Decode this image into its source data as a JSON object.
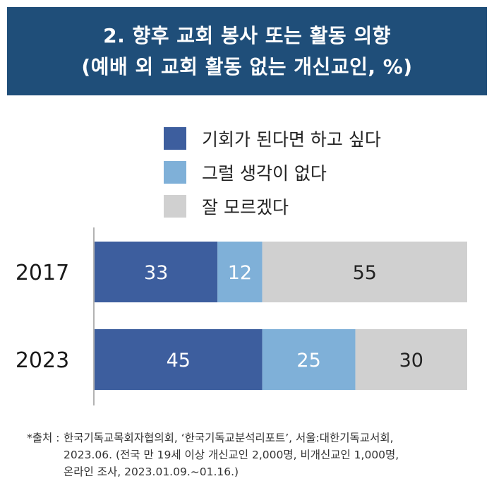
{
  "title": {
    "line1": "2. 향후 교회 봉사 또는 활동 의향",
    "line2": "(예배 외 교회 활동 없는 개신교인, %)"
  },
  "legend": [
    {
      "label": "기회가 된다면 하고 싶다",
      "color": "#3d5e9e"
    },
    {
      "label": "그럴 생각이 없다",
      "color": "#7fb0d8"
    },
    {
      "label": "잘 모르겠다",
      "color": "#d0d0d0"
    }
  ],
  "chart_data": {
    "type": "bar",
    "orientation": "horizontal",
    "stacked": true,
    "categories": [
      "2017",
      "2023"
    ],
    "series": [
      {
        "name": "기회가 된다면 하고 싶다",
        "values": [
          33,
          45
        ],
        "color": "#3d5e9e",
        "label_color": "#ffffff"
      },
      {
        "name": "그럴 생각이 없다",
        "values": [
          12,
          25
        ],
        "color": "#7fb0d8",
        "label_color": "#ffffff"
      },
      {
        "name": "잘 모르겠다",
        "values": [
          55,
          30
        ],
        "color": "#d0d0d0",
        "label_color": "#222222"
      }
    ],
    "xlim": [
      0,
      100
    ],
    "grid": false,
    "legend_position": "top"
  },
  "source": {
    "label": "*출처 :",
    "line1": "한국기독교목회자협의회, ‘한국기독교분석리포트’, 서울:대한기독교서회,",
    "line2": "2023.06. (전국 만 19세 이상 개신교인 2,000명, 비개신교인 1,000명,",
    "line3": "온라인 조사, 2023.01.09.~01.16.)"
  }
}
